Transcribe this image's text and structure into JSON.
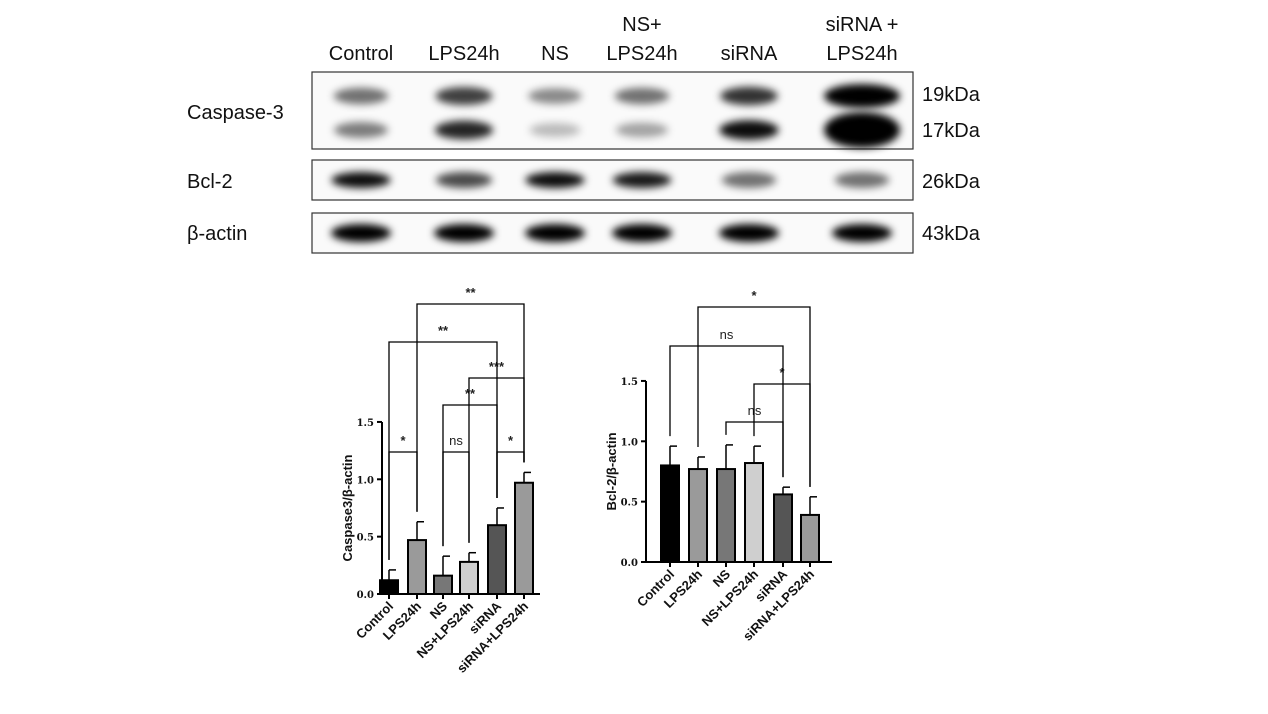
{
  "blot": {
    "lanes": [
      "Control",
      "LPS24h",
      "NS",
      "NS+\nLPS24h",
      "siRNA",
      "siRNA +\nLPS24h"
    ],
    "rows": [
      {
        "name": "Caspase-3",
        "markers": [
          "19kDa",
          "17kDa"
        ],
        "bands": [
          [
            0.55,
            0.5
          ],
          [
            0.75,
            0.85
          ],
          [
            0.45,
            0.25
          ],
          [
            0.55,
            0.35
          ],
          [
            0.8,
            0.95
          ],
          [
            1.0,
            1.0
          ]
        ]
      },
      {
        "name": "Bcl-2",
        "markers": [
          "26kDa"
        ],
        "bands": [
          [
            0.95
          ],
          [
            0.7
          ],
          [
            0.95
          ],
          [
            0.9
          ],
          [
            0.55
          ],
          [
            0.55
          ]
        ]
      },
      {
        "name": "β-actin",
        "markers": [
          "43kDa"
        ],
        "bands": [
          [
            1
          ],
          [
            1
          ],
          [
            1
          ],
          [
            1
          ],
          [
            1
          ],
          [
            1
          ]
        ]
      }
    ]
  },
  "chart_data": [
    {
      "type": "bar",
      "ylabel": "Caspase3/β-actin",
      "categories": [
        "Control",
        "LPS24h",
        "NS",
        "NS+LPS24h",
        "siRNA",
        "siRNA+LPS24h"
      ],
      "values": [
        0.12,
        0.47,
        0.16,
        0.28,
        0.6,
        0.97
      ],
      "errors": [
        0.09,
        0.16,
        0.17,
        0.08,
        0.15,
        0.09
      ],
      "colors": [
        "#000000",
        "#9a9a9a",
        "#777777",
        "#cfcfcf",
        "#555555",
        "#9a9a9a"
      ],
      "ylim": [
        0,
        1.5
      ],
      "yticks": [
        "0.0",
        "0.5",
        "1.0",
        "1.5"
      ],
      "comparisons": [
        {
          "pair": [
            0,
            1
          ],
          "label": "*"
        },
        {
          "pair": [
            2,
            3
          ],
          "label": "ns"
        },
        {
          "pair": [
            4,
            5
          ],
          "label": "*"
        },
        {
          "pair": [
            2,
            4
          ],
          "label": "**"
        },
        {
          "pair": [
            3,
            5
          ],
          "label": "***"
        },
        {
          "pair": [
            0,
            4
          ],
          "label": "**"
        },
        {
          "pair": [
            1,
            5
          ],
          "label": "**"
        }
      ]
    },
    {
      "type": "bar",
      "ylabel": "Bcl-2/β-actin",
      "categories": [
        "Control",
        "LPS24h",
        "NS",
        "NS+LPS24h",
        "siRNA",
        "siRNA+LPS24h"
      ],
      "values": [
        0.8,
        0.77,
        0.77,
        0.82,
        0.56,
        0.39
      ],
      "errors": [
        0.16,
        0.1,
        0.2,
        0.14,
        0.06,
        0.15
      ],
      "colors": [
        "#000000",
        "#9a9a9a",
        "#777777",
        "#cfcfcf",
        "#555555",
        "#9a9a9a"
      ],
      "ylim": [
        0,
        1.5
      ],
      "yticks": [
        "0.0",
        "0.5",
        "1.0",
        "1.5"
      ],
      "comparisons": [
        {
          "pair": [
            2,
            4
          ],
          "label": "ns"
        },
        {
          "pair": [
            3,
            5
          ],
          "label": "*"
        },
        {
          "pair": [
            0,
            4
          ],
          "label": "ns"
        },
        {
          "pair": [
            1,
            5
          ],
          "label": "*"
        }
      ]
    }
  ]
}
